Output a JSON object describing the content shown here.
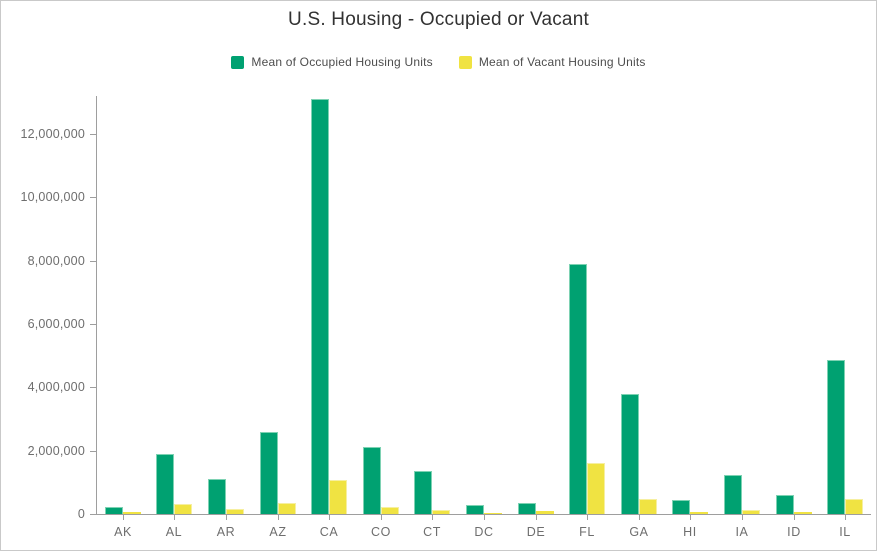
{
  "chart_data": {
    "type": "bar",
    "title": "U.S. Housing - Occupied or Vacant",
    "xlabel": "",
    "ylabel": "",
    "grid": false,
    "legend_position": "top-center",
    "categories": [
      "AK",
      "AL",
      "AR",
      "AZ",
      "CA",
      "CO",
      "CT",
      "DC",
      "DE",
      "FL",
      "GA",
      "HI",
      "IA",
      "ID",
      "IL"
    ],
    "series": [
      {
        "name": "Mean of Occupied Housing Units",
        "color": "#00a171",
        "edge_color": "#7ed2b3",
        "values": [
          210000,
          1880000,
          1120000,
          2600000,
          13100000,
          2100000,
          1370000,
          270000,
          340000,
          7900000,
          3800000,
          430000,
          1230000,
          600000,
          4850000
        ]
      },
      {
        "name": "Mean of Vacant Housing Units",
        "color": "#f0e342",
        "edge_color": "#f6efa0",
        "values": [
          50000,
          320000,
          170000,
          360000,
          1080000,
          210000,
          120000,
          30000,
          80000,
          1600000,
          470000,
          70000,
          130000,
          65000,
          460000
        ]
      }
    ],
    "y_ticks": [
      0,
      2000000,
      4000000,
      6000000,
      8000000,
      10000000,
      12000000
    ],
    "y_tick_labels": [
      "0",
      "2,000,000",
      "4,000,000",
      "6,000,000",
      "8,000,000",
      "10,000,000",
      "12,000,000"
    ],
    "ylim": [
      0,
      13200000
    ],
    "colors": {
      "title_text": "#323232",
      "legend_text": "#4d4d4d",
      "axis_line": "#9e9e9e",
      "tick_label": "#6e6e6e",
      "canvas_border": "#c9c9c9",
      "background": "#ffffff"
    }
  }
}
